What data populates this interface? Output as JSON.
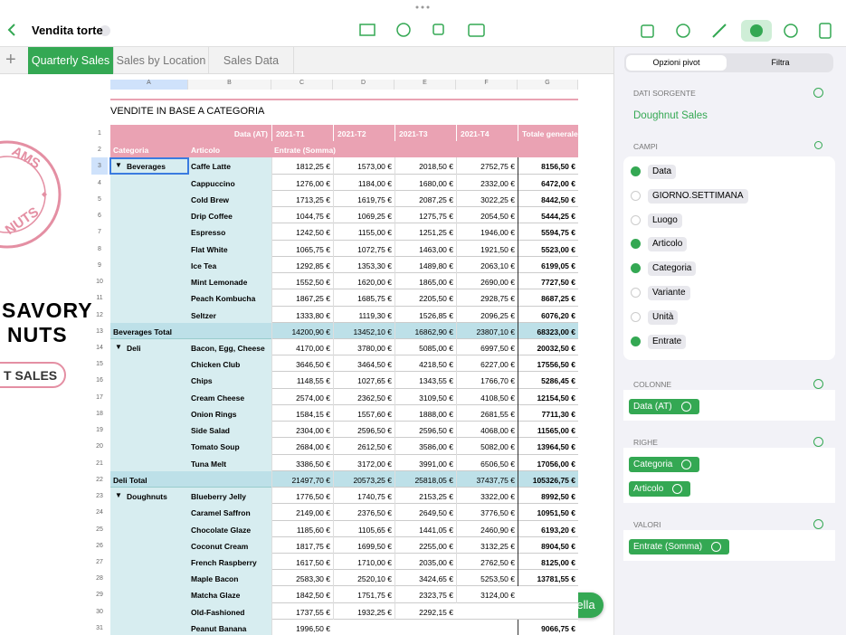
{
  "toolbar": {
    "doc_title": "Vendita torte"
  },
  "tabs": [
    "Quarterly Sales",
    "Sales by Location",
    "Sales Data"
  ],
  "canvas": {
    "logo_top": "AMS",
    "logo_bottom": "NUTS",
    "headline_1": "SAVORY",
    "headline_2": "NUTS",
    "button": "T SALES"
  },
  "sheet": {
    "columns": [
      "A",
      "B",
      "C",
      "D",
      "E",
      "F",
      "G"
    ],
    "row_numbers": [
      1,
      2,
      3,
      4,
      5,
      6,
      7,
      8,
      9,
      10,
      11,
      12,
      13,
      14,
      15,
      16,
      17,
      18,
      19,
      20,
      21,
      22,
      23,
      24,
      25,
      26,
      27,
      28,
      29,
      30,
      31
    ],
    "title": "VENDITE IN BASE A CATEGORIA",
    "header1": [
      "Data (AT)",
      "2021-T1",
      "2021-T2",
      "2021-T3",
      "2021-T4",
      "Totale generale"
    ],
    "header2": [
      "Categoria",
      "Articolo",
      "Entrate (Somma)"
    ],
    "rows": [
      [
        "Beverages",
        "Caffe Latte",
        "1812,25 €",
        "1573,00 €",
        "2018,50 €",
        "2752,75 €",
        "8156,50 €"
      ],
      [
        null,
        "Cappuccino",
        "1276,00 €",
        "1184,00 €",
        "1680,00 €",
        "2332,00 €",
        "6472,00 €"
      ],
      [
        null,
        "Cold Brew",
        "1713,25 €",
        "1619,75 €",
        "2087,25 €",
        "3022,25 €",
        "8442,50 €"
      ],
      [
        null,
        "Drip Coffee",
        "1044,75 €",
        "1069,25 €",
        "1275,75 €",
        "2054,50 €",
        "5444,25 €"
      ],
      [
        null,
        "Espresso",
        "1242,50 €",
        "1155,00 €",
        "1251,25 €",
        "1946,00 €",
        "5594,75 €"
      ],
      [
        null,
        "Flat White",
        "1065,75 €",
        "1072,75 €",
        "1463,00 €",
        "1921,50 €",
        "5523,00 €"
      ],
      [
        null,
        "Ice Tea",
        "1292,85 €",
        "1353,30 €",
        "1489,80 €",
        "2063,10 €",
        "6199,05 €"
      ],
      [
        null,
        "Mint Lemonade",
        "1552,50 €",
        "1620,00 €",
        "1865,00 €",
        "2690,00 €",
        "7727,50 €"
      ],
      [
        null,
        "Peach Kombucha",
        "1867,25 €",
        "1685,75 €",
        "2205,50 €",
        "2928,75 €",
        "8687,25 €"
      ],
      [
        null,
        "Seltzer",
        "1333,80 €",
        "1119,30 €",
        "1526,85 €",
        "2096,25 €",
        "6076,20 €"
      ],
      [
        "Beverages Total",
        null,
        "14200,90 €",
        "13452,10 €",
        "16862,90 €",
        "23807,10 €",
        "68323,00 €"
      ],
      [
        "Deli",
        "Bacon, Egg, Cheese",
        "4170,00 €",
        "3780,00 €",
        "5085,00 €",
        "6997,50 €",
        "20032,50 €"
      ],
      [
        null,
        "Chicken Club",
        "3646,50 €",
        "3464,50 €",
        "4218,50 €",
        "6227,00 €",
        "17556,50 €"
      ],
      [
        null,
        "Chips",
        "1148,55 €",
        "1027,65 €",
        "1343,55 €",
        "1766,70 €",
        "5286,45 €"
      ],
      [
        null,
        "Cream Cheese",
        "2574,00 €",
        "2362,50 €",
        "3109,50 €",
        "4108,50 €",
        "12154,50 €"
      ],
      [
        null,
        "Onion Rings",
        "1584,15 €",
        "1557,60 €",
        "1888,00 €",
        "2681,55 €",
        "7711,30 €"
      ],
      [
        null,
        "Side Salad",
        "2304,00 €",
        "2596,50 €",
        "2596,50 €",
        "4068,00 €",
        "11565,00 €"
      ],
      [
        null,
        "Tomato Soup",
        "2684,00 €",
        "2612,50 €",
        "3586,00 €",
        "5082,00 €",
        "13964,50 €"
      ],
      [
        null,
        "Tuna Melt",
        "3386,50 €",
        "3172,00 €",
        "3991,00 €",
        "6506,50 €",
        "17056,00 €"
      ],
      [
        "Deli Total",
        null,
        "21497,70 €",
        "20573,25 €",
        "25818,05 €",
        "37437,75 €",
        "105326,75 €"
      ],
      [
        "Doughnuts",
        "Blueberry Jelly",
        "1776,50 €",
        "1740,75 €",
        "2153,25 €",
        "3322,00 €",
        "8992,50 €"
      ],
      [
        null,
        "Caramel Saffron",
        "2149,00 €",
        "2376,50 €",
        "2649,50 €",
        "3776,50 €",
        "10951,50 €"
      ],
      [
        null,
        "Chocolate Glaze",
        "1185,60 €",
        "1105,65 €",
        "1441,05 €",
        "2460,90 €",
        "6193,20 €"
      ],
      [
        null,
        "Coconut Cream",
        "1817,75 €",
        "1699,50 €",
        "2255,00 €",
        "3132,25 €",
        "8904,50 €"
      ],
      [
        null,
        "French Raspberry",
        "1617,50 €",
        "1710,00 €",
        "2035,00 €",
        "2762,50 €",
        "8125,00 €"
      ],
      [
        null,
        "Maple Bacon",
        "2583,30 €",
        "2520,10 €",
        "3424,65 €",
        "5253,50 €",
        "13781,55 €"
      ],
      [
        null,
        "Matcha Glaze",
        "1842,50 €",
        "1751,75 €",
        "2323,75 €",
        "3124,00 €",
        null
      ],
      [
        null,
        "Old-Fashioned",
        "1737,55 €",
        "1932,25 €",
        "2292,15 €",
        null,
        null
      ],
      [
        null,
        "Peanut Banana",
        "1996,50 €",
        null,
        null,
        null,
        "9066,75 €"
      ]
    ]
  },
  "cell_button": "Cella",
  "panel": {
    "tabs": [
      "Opzioni pivot",
      "Filtra"
    ],
    "source_label": "DATI SORGENTE",
    "source": "Doughnut Sales",
    "fields_label": "CAMPI",
    "fields": [
      {
        "name": "Data",
        "checked": true
      },
      {
        "name": "GIORNO.SETTIMANA",
        "checked": false
      },
      {
        "name": "Luogo",
        "checked": false
      },
      {
        "name": "Articolo",
        "checked": true
      },
      {
        "name": "Categoria",
        "checked": true
      },
      {
        "name": "Variante",
        "checked": false
      },
      {
        "name": "Unità",
        "checked": false
      },
      {
        "name": "Entrate",
        "checked": true
      }
    ],
    "columns_label": "COLONNE",
    "columns": [
      "Data (AT)"
    ],
    "rows_label": "RIGHE",
    "rows": [
      "Categoria",
      "Articolo"
    ],
    "values_label": "VALORI",
    "values": [
      "Entrate (Somma)"
    ]
  }
}
